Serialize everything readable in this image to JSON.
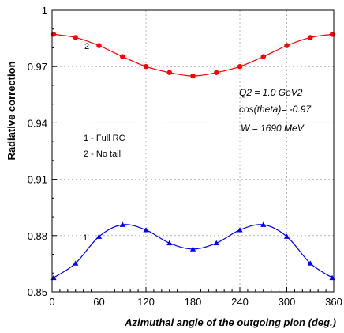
{
  "chart_data": {
    "type": "line",
    "xlabel": "Azimuthal angle of the outgoing pion (deg.)",
    "ylabel": "Radiative correction",
    "xlim": [
      0,
      360
    ],
    "ylim": [
      0.85,
      1.0
    ],
    "xticks": [
      "0",
      "60",
      "120",
      "180",
      "240",
      "300",
      "360"
    ],
    "yticks": [
      "0.85",
      "0.88",
      "0.91",
      "0.94",
      "0.97",
      "1"
    ],
    "grid": true,
    "annotations": [
      "Q2 = 1.0 GeV2",
      "cos(theta)= -0.97",
      "W = 1690 MeV"
    ],
    "legend": [
      "1 - Full RC",
      "2 - No tail"
    ],
    "series": [
      {
        "name": "2",
        "color": "#ff0000",
        "marker": "circle",
        "x": [
          2,
          30,
          60,
          90,
          120,
          150,
          180,
          210,
          240,
          270,
          300,
          330,
          358
        ],
        "y": [
          0.9872,
          0.9855,
          0.9812,
          0.9753,
          0.97,
          0.9668,
          0.965,
          0.9668,
          0.97,
          0.9753,
          0.9812,
          0.9855,
          0.9872
        ]
      },
      {
        "name": "1",
        "color": "#0000ff",
        "marker": "triangle",
        "x": [
          2,
          30,
          60,
          90,
          120,
          150,
          180,
          210,
          240,
          270,
          300,
          330,
          358
        ],
        "y": [
          0.8575,
          0.8652,
          0.8795,
          0.8858,
          0.883,
          0.876,
          0.8728,
          0.876,
          0.883,
          0.8858,
          0.8795,
          0.8652,
          0.8575
        ]
      }
    ]
  }
}
